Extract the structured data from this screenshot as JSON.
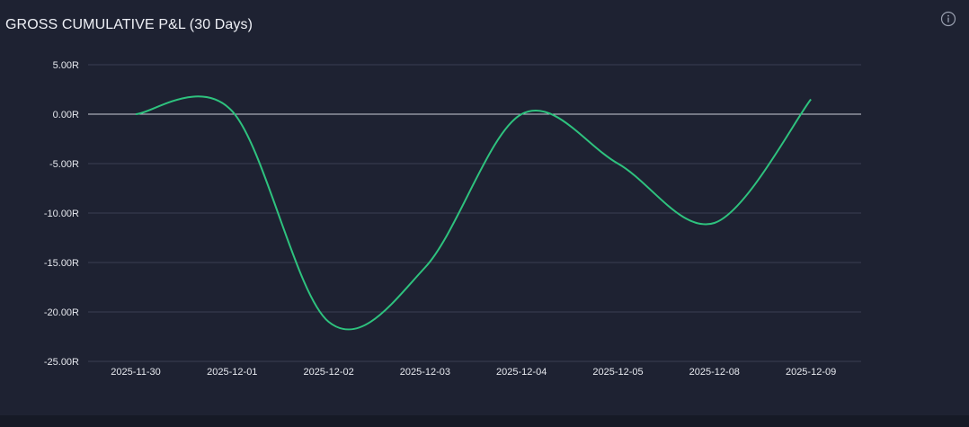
{
  "header": {
    "title": "GROSS CUMULATIVE P&L (30 Days)",
    "info_icon": "info-icon"
  },
  "chart_data": {
    "type": "line",
    "title": "GROSS CUMULATIVE P&L (30 Days)",
    "xlabel": "",
    "ylabel": "",
    "categories": [
      "2025-11-30",
      "2025-12-01",
      "2025-12-02",
      "2025-12-03",
      "2025-12-04",
      "2025-12-05",
      "2025-12-08",
      "2025-12-09"
    ],
    "series": [
      {
        "values": [
          0.0,
          0.3,
          -21.0,
          -15.5,
          0.0,
          -5.0,
          -11.0,
          1.5
        ],
        "color": "#2ec27e"
      }
    ],
    "yticks": [
      "5.00R",
      "0.00R",
      "-5.00R",
      "-10.00R",
      "-15.00R",
      "-20.00R",
      "-25.00R"
    ],
    "ylim": [
      -25,
      5
    ],
    "grid": true,
    "zero_line": true
  },
  "colors": {
    "background": "#1e2232",
    "grid": "#3a3f52",
    "zero_line": "#c9ccd6",
    "line": "#2ec27e",
    "text": "#e6e8ee"
  }
}
